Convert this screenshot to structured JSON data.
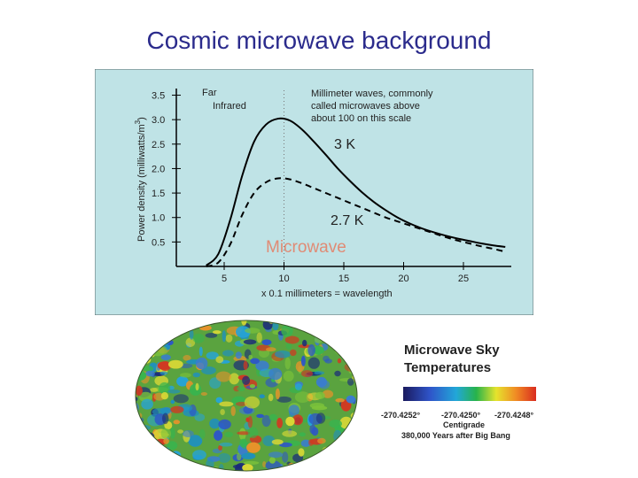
{
  "slide": {
    "title": "Cosmic microwave background"
  },
  "chart_data": {
    "type": "line",
    "ylabel": "Power density (milliwatts/m",
    "ylabel_exp": "3",
    "ylabel_close": ")",
    "xlabel": "x 0.1 millimeters = wavelength",
    "xlim": [
      1,
      29
    ],
    "ylim": [
      0,
      3.6
    ],
    "xticks": [
      5,
      10,
      15,
      20,
      25
    ],
    "yticks": [
      0.5,
      1.0,
      1.5,
      2.0,
      2.5,
      3.0,
      3.5
    ],
    "ytick_labels": [
      "0.5",
      "1.0",
      "1.5",
      "2.0",
      "2.5",
      "3.0",
      "3.5"
    ],
    "divider_x": 10,
    "series": [
      {
        "name": "3 K",
        "style": "solid",
        "x": [
          3.5,
          4.5,
          5.5,
          6.5,
          7.5,
          8.5,
          9.5,
          10.5,
          11.5,
          12.5,
          13.5,
          14.5,
          15.5,
          16.5,
          17.5,
          18.5,
          19.5,
          20.5,
          21.5,
          22.5,
          23.5,
          24.5,
          25.5,
          26.5,
          27.5,
          28.5
        ],
        "y": [
          0.02,
          0.25,
          0.95,
          1.85,
          2.55,
          2.9,
          3.02,
          2.98,
          2.8,
          2.55,
          2.28,
          2.0,
          1.75,
          1.52,
          1.32,
          1.15,
          1.0,
          0.88,
          0.78,
          0.7,
          0.63,
          0.57,
          0.52,
          0.47,
          0.43,
          0.4
        ]
      },
      {
        "name": "2.7 K",
        "style": "dashed",
        "x": [
          3.5,
          4.5,
          5.5,
          6.5,
          7.5,
          8.5,
          9.5,
          10.5,
          11.5,
          12.5,
          13.5,
          14.5,
          15.5,
          16.5,
          17.5,
          18.5,
          19.5,
          20.5,
          21.5,
          22.5,
          23.5,
          24.5,
          25.5,
          26.5,
          27.5,
          28.5
        ],
        "y": [
          0.0,
          0.08,
          0.45,
          1.05,
          1.5,
          1.72,
          1.8,
          1.78,
          1.7,
          1.6,
          1.5,
          1.4,
          1.3,
          1.2,
          1.1,
          1.0,
          0.92,
          0.84,
          0.76,
          0.68,
          0.6,
          0.53,
          0.47,
          0.41,
          0.36,
          0.3
        ]
      }
    ],
    "annotations": {
      "far_infrared_1": "Far",
      "far_infrared_2": "Infrared",
      "mm_line1": "Millimeter waves, commonly",
      "mm_line2": "called microwaves above",
      "mm_line3": "about 100 on this scale",
      "label_3k": "3 K",
      "label_27k": "2.7 K",
      "microwave": "Microwave"
    }
  },
  "sky_map": {
    "title_line1": "Microwave Sky",
    "title_line2": "Temperatures",
    "scale_min": "-270.4252°",
    "scale_mid": "-270.4250°",
    "scale_max": "-270.4248°",
    "unit": "Centigrade",
    "caption": "380,000 Years after Big Bang"
  },
  "colors": {
    "title": "#2b2b8c",
    "panel_bg": "#bfe3e6",
    "curve": "#000000",
    "microwave_label": "#e08b75"
  }
}
